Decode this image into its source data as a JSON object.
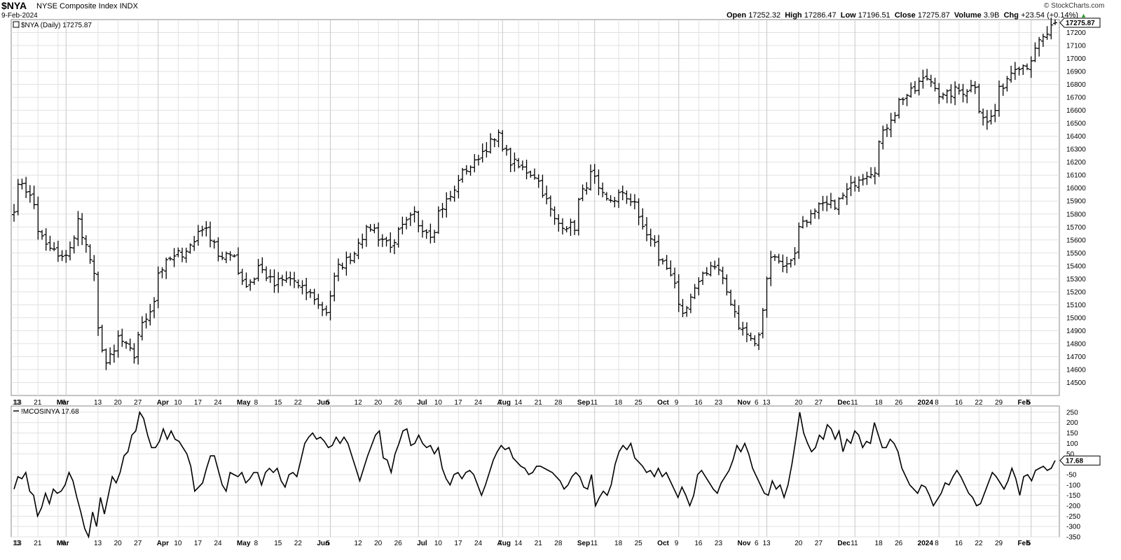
{
  "header": {
    "symbol": "$NYA",
    "name": "NYSE Composite Index",
    "exchange": "INDX",
    "date": "9-Feb-2024",
    "open_label": "Open",
    "open": "17252.32",
    "high_label": "High",
    "high": "17286.47",
    "low_label": "Low",
    "low": "17196.51",
    "close_label": "Close",
    "close": "17275.87",
    "volume_label": "Volume",
    "volume": "3.9B",
    "chg_label": "Chg",
    "chg": "+23.54 (+0.14%)",
    "logo": "© StockCharts.com"
  },
  "colors": {
    "price_bars": "#000000",
    "grid": "#e1e1e1",
    "month_grid": "#c8c8c8",
    "background": "#ffffff"
  },
  "chart_data": [
    {
      "type": "bar",
      "style": "ohlc",
      "legend": "$NYA (Daily) 17275.87",
      "last_value_label": "17275.87",
      "ylim": [
        14400,
        17300
      ],
      "yticks": [
        14500,
        14600,
        14700,
        14800,
        14900,
        15000,
        15100,
        15200,
        15300,
        15400,
        15500,
        15600,
        15700,
        15800,
        15900,
        16000,
        16100,
        16200,
        16300,
        16400,
        16500,
        16600,
        16700,
        16800,
        16900,
        17000,
        17100,
        17200
      ],
      "grid": true,
      "x_tick_labels": [
        "13",
        "21",
        "Mar",
        "6",
        "13",
        "20",
        "27",
        "Apr",
        "10",
        "17",
        "24",
        "May",
        "8",
        "15",
        "22",
        "Jun",
        "5",
        "12",
        "20",
        "26",
        "Jul",
        "10",
        "17",
        "24",
        "Aug",
        "7",
        "14",
        "21",
        "28",
        "Sep",
        "11",
        "18",
        "25",
        "Oct",
        "9",
        "16",
        "23",
        "Nov",
        "6",
        "13",
        "20",
        "27",
        "Dec",
        "11",
        "18",
        "26",
        "2024",
        "8",
        "16",
        "22",
        "29",
        "Feb",
        "5"
      ],
      "bold_x_ticks": [
        "Mar",
        "Apr",
        "May",
        "Jun",
        "Jul",
        "Aug",
        "Sep",
        "Oct",
        "Nov",
        "Dec",
        "2024",
        "Feb"
      ],
      "x_start": "2023-02-10",
      "x_end": "2024-02-09",
      "close_anchors": [
        [
          "2023-02-10",
          15850
        ],
        [
          "2023-02-14",
          16050
        ],
        [
          "2023-02-17",
          15870
        ],
        [
          "2023-02-22",
          15550
        ],
        [
          "2023-02-28",
          15450
        ],
        [
          "2023-03-06",
          15750
        ],
        [
          "2023-03-09",
          15450
        ],
        [
          "2023-03-13",
          14900
        ],
        [
          "2023-03-15",
          14650
        ],
        [
          "2023-03-20",
          14850
        ],
        [
          "2023-03-24",
          14700
        ],
        [
          "2023-03-29",
          15000
        ],
        [
          "2023-04-03",
          15350
        ],
        [
          "2023-04-06",
          15450
        ],
        [
          "2023-04-11",
          15500
        ],
        [
          "2023-04-18",
          15700
        ],
        [
          "2023-04-25",
          15450
        ],
        [
          "2023-04-28",
          15500
        ],
        [
          "2023-05-03",
          15250
        ],
        [
          "2023-05-08",
          15400
        ],
        [
          "2023-05-12",
          15250
        ],
        [
          "2023-05-18",
          15300
        ],
        [
          "2023-05-24",
          15200
        ],
        [
          "2023-05-31",
          15050
        ],
        [
          "2023-06-02",
          15300
        ],
        [
          "2023-06-09",
          15500
        ],
        [
          "2023-06-15",
          15700
        ],
        [
          "2023-06-23",
          15550
        ],
        [
          "2023-06-30",
          15800
        ],
        [
          "2023-07-06",
          15650
        ],
        [
          "2023-07-12",
          15900
        ],
        [
          "2023-07-19",
          16150
        ],
        [
          "2023-07-24",
          16250
        ],
        [
          "2023-07-27",
          16350
        ],
        [
          "2023-07-31",
          16400
        ],
        [
          "2023-08-03",
          16200
        ],
        [
          "2023-08-08",
          16150
        ],
        [
          "2023-08-14",
          16050
        ],
        [
          "2023-08-18",
          15750
        ],
        [
          "2023-08-25",
          15700
        ],
        [
          "2023-08-31",
          16100
        ],
        [
          "2023-09-06",
          15900
        ],
        [
          "2023-09-11",
          15950
        ],
        [
          "2023-09-15",
          15900
        ],
        [
          "2023-09-21",
          15600
        ],
        [
          "2023-09-28",
          15350
        ],
        [
          "2023-10-03",
          15000
        ],
        [
          "2023-10-06",
          15200
        ],
        [
          "2023-10-12",
          15400
        ],
        [
          "2023-10-16",
          15350
        ],
        [
          "2023-10-20",
          15050
        ],
        [
          "2023-10-27",
          14800
        ],
        [
          "2023-10-30",
          14850
        ],
        [
          "2023-11-02",
          15500
        ],
        [
          "2023-11-08",
          15400
        ],
        [
          "2023-11-14",
          15750
        ],
        [
          "2023-11-20",
          15850
        ],
        [
          "2023-11-27",
          15900
        ],
        [
          "2023-12-01",
          16050
        ],
        [
          "2023-12-05",
          16100
        ],
        [
          "2023-12-08",
          16150
        ],
        [
          "2023-12-14",
          16550
        ],
        [
          "2023-12-19",
          16700
        ],
        [
          "2023-12-27",
          16850
        ],
        [
          "2024-01-02",
          16700
        ],
        [
          "2024-01-05",
          16750
        ],
        [
          "2024-01-09",
          16750
        ],
        [
          "2024-01-12",
          16800
        ],
        [
          "2024-01-17",
          16500
        ],
        [
          "2024-01-22",
          16750
        ],
        [
          "2024-01-26",
          16950
        ],
        [
          "2024-01-31",
          16950
        ],
        [
          "2024-02-02",
          17050
        ],
        [
          "2024-02-06",
          17150
        ],
        [
          "2024-02-09",
          17275.87
        ]
      ]
    },
    {
      "type": "line",
      "legend": "!MCOSINYA 17.68",
      "last_value_label": "17.68",
      "ylim": [
        -350,
        280
      ],
      "yticks": [
        250,
        200,
        150,
        100,
        50,
        -50,
        -100,
        -150,
        -200,
        -250,
        -300,
        -350
      ],
      "grid": true,
      "values": [
        -120,
        -60,
        -70,
        -40,
        -130,
        -150,
        -250,
        -210,
        -140,
        -190,
        -120,
        -140,
        -130,
        -100,
        -40,
        -80,
        -160,
        -230,
        -310,
        -350,
        -230,
        -300,
        -160,
        -240,
        -150,
        -60,
        -90,
        -40,
        40,
        60,
        140,
        160,
        250,
        220,
        140,
        80,
        80,
        110,
        170,
        120,
        160,
        120,
        110,
        80,
        50,
        -10,
        -130,
        -110,
        -90,
        -20,
        40,
        40,
        -30,
        -100,
        -130,
        -40,
        -50,
        -60,
        -40,
        -90,
        -70,
        -40,
        -40,
        -100,
        -40,
        -20,
        -40,
        -20,
        -80,
        -110,
        -50,
        -40,
        -60,
        20,
        100,
        130,
        150,
        120,
        130,
        110,
        80,
        90,
        130,
        100,
        130,
        100,
        40,
        -20,
        -80,
        -20,
        40,
        90,
        140,
        160,
        30,
        20,
        -40,
        50,
        100,
        160,
        170,
        90,
        100,
        140,
        100,
        80,
        90,
        50,
        80,
        -20,
        -70,
        -100,
        -50,
        -40,
        -70,
        -40,
        -30,
        -50,
        -100,
        -150,
        -100,
        -40,
        20,
        60,
        90,
        70,
        80,
        30,
        10,
        -10,
        -20,
        -50,
        -40,
        -10,
        -10,
        -20,
        -30,
        -40,
        -60,
        -80,
        -120,
        -100,
        -60,
        -40,
        -60,
        -110,
        -120,
        -50,
        -200,
        -160,
        -130,
        -150,
        -100,
        0,
        60,
        90,
        70,
        100,
        30,
        10,
        -10,
        -40,
        -30,
        -60,
        -20,
        -60,
        -40,
        -80,
        -120,
        -160,
        -110,
        -150,
        -200,
        -150,
        -50,
        -30,
        -60,
        -90,
        -120,
        -140,
        -90,
        -60,
        -30,
        20,
        90,
        60,
        100,
        50,
        -20,
        -60,
        -100,
        -140,
        -150,
        -80,
        -120,
        -100,
        -160,
        -100,
        0,
        120,
        250,
        150,
        100,
        60,
        80,
        140,
        120,
        190,
        170,
        120,
        160,
        60,
        120,
        100,
        160,
        140,
        80,
        110,
        100,
        200,
        140,
        80,
        80,
        120,
        100,
        60,
        -20,
        -60,
        -100,
        -120,
        -140,
        -100,
        -110,
        -150,
        -200,
        -170,
        -140,
        -90,
        -100,
        -60,
        -30,
        -60,
        -100,
        -140,
        -160,
        -200,
        -190,
        -140,
        -90,
        -40,
        -60,
        -90,
        -120,
        -80,
        -20,
        -70,
        -150,
        -60,
        -50,
        -80,
        -30,
        -20,
        -10,
        -30,
        -20,
        17.68
      ]
    }
  ]
}
